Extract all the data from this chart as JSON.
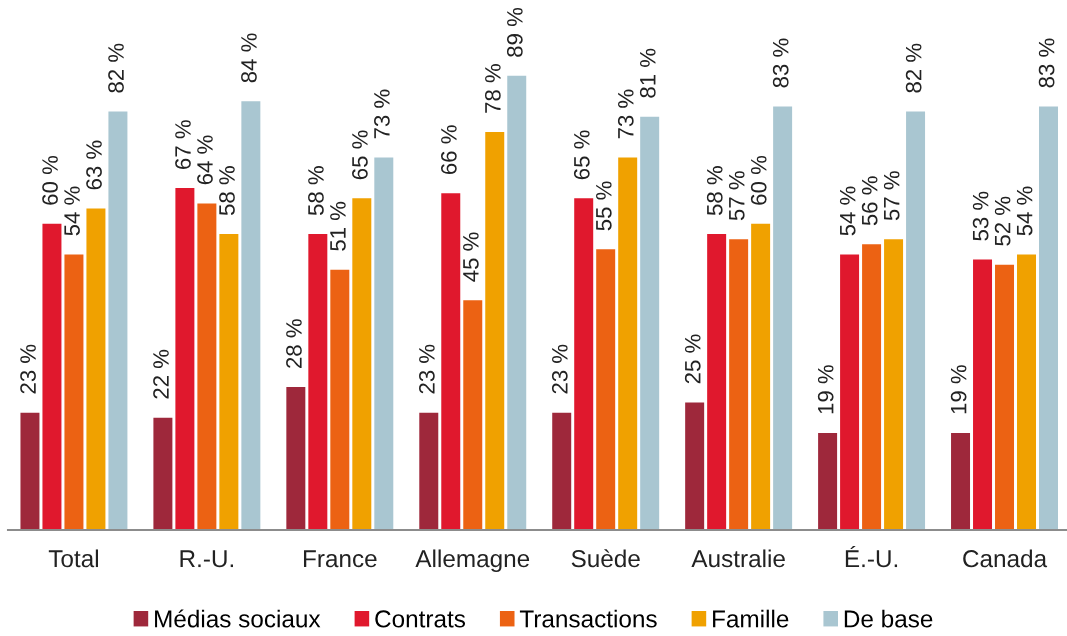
{
  "chart_data": {
    "type": "bar",
    "categories": [
      "Total",
      "R.-U.",
      "France",
      "Allemagne",
      "Suède",
      "Australie",
      "É.-U.",
      "Canada"
    ],
    "series": [
      {
        "name": "Médias sociaux",
        "color": "#9e283b",
        "values": [
          23,
          22,
          28,
          23,
          23,
          25,
          19,
          19
        ],
        "value_labels": [
          "23 %",
          "22 %",
          "28 %",
          "23 %",
          "23 %",
          "25 %",
          "19 %",
          "19 %"
        ]
      },
      {
        "name": "Contrats",
        "color": "#e0182d",
        "values": [
          60,
          67,
          58,
          66,
          65,
          58,
          54,
          53
        ],
        "value_labels": [
          "60 %",
          "67 %",
          "58 %",
          "66 %",
          "65 %",
          "58 %",
          "54 %",
          "53 %"
        ]
      },
      {
        "name": "Transactions",
        "color": "#ec6213",
        "values": [
          54,
          64,
          51,
          45,
          55,
          57,
          56,
          52
        ],
        "value_labels": [
          "54 %",
          "64 %",
          "51 %",
          "45 %",
          "55 %",
          "57 %",
          "56 %",
          "52 %"
        ]
      },
      {
        "name": "Famille",
        "color": "#f0a100",
        "values": [
          63,
          58,
          65,
          78,
          73,
          60,
          57,
          54
        ],
        "value_labels": [
          "63 %",
          "58 %",
          "65 %",
          "78 %",
          "73 %",
          "60 %",
          "57 %",
          "54 %"
        ]
      },
      {
        "name": "De base",
        "color": "#a9c6d1",
        "values": [
          82,
          84,
          73,
          89,
          81,
          83,
          82,
          83
        ],
        "value_labels": [
          "82 %",
          "84 %",
          "73 %",
          "89 %",
          "81 %",
          "83 %",
          "82 %",
          "83 %"
        ]
      }
    ],
    "grid": false,
    "legend": "bottom"
  }
}
